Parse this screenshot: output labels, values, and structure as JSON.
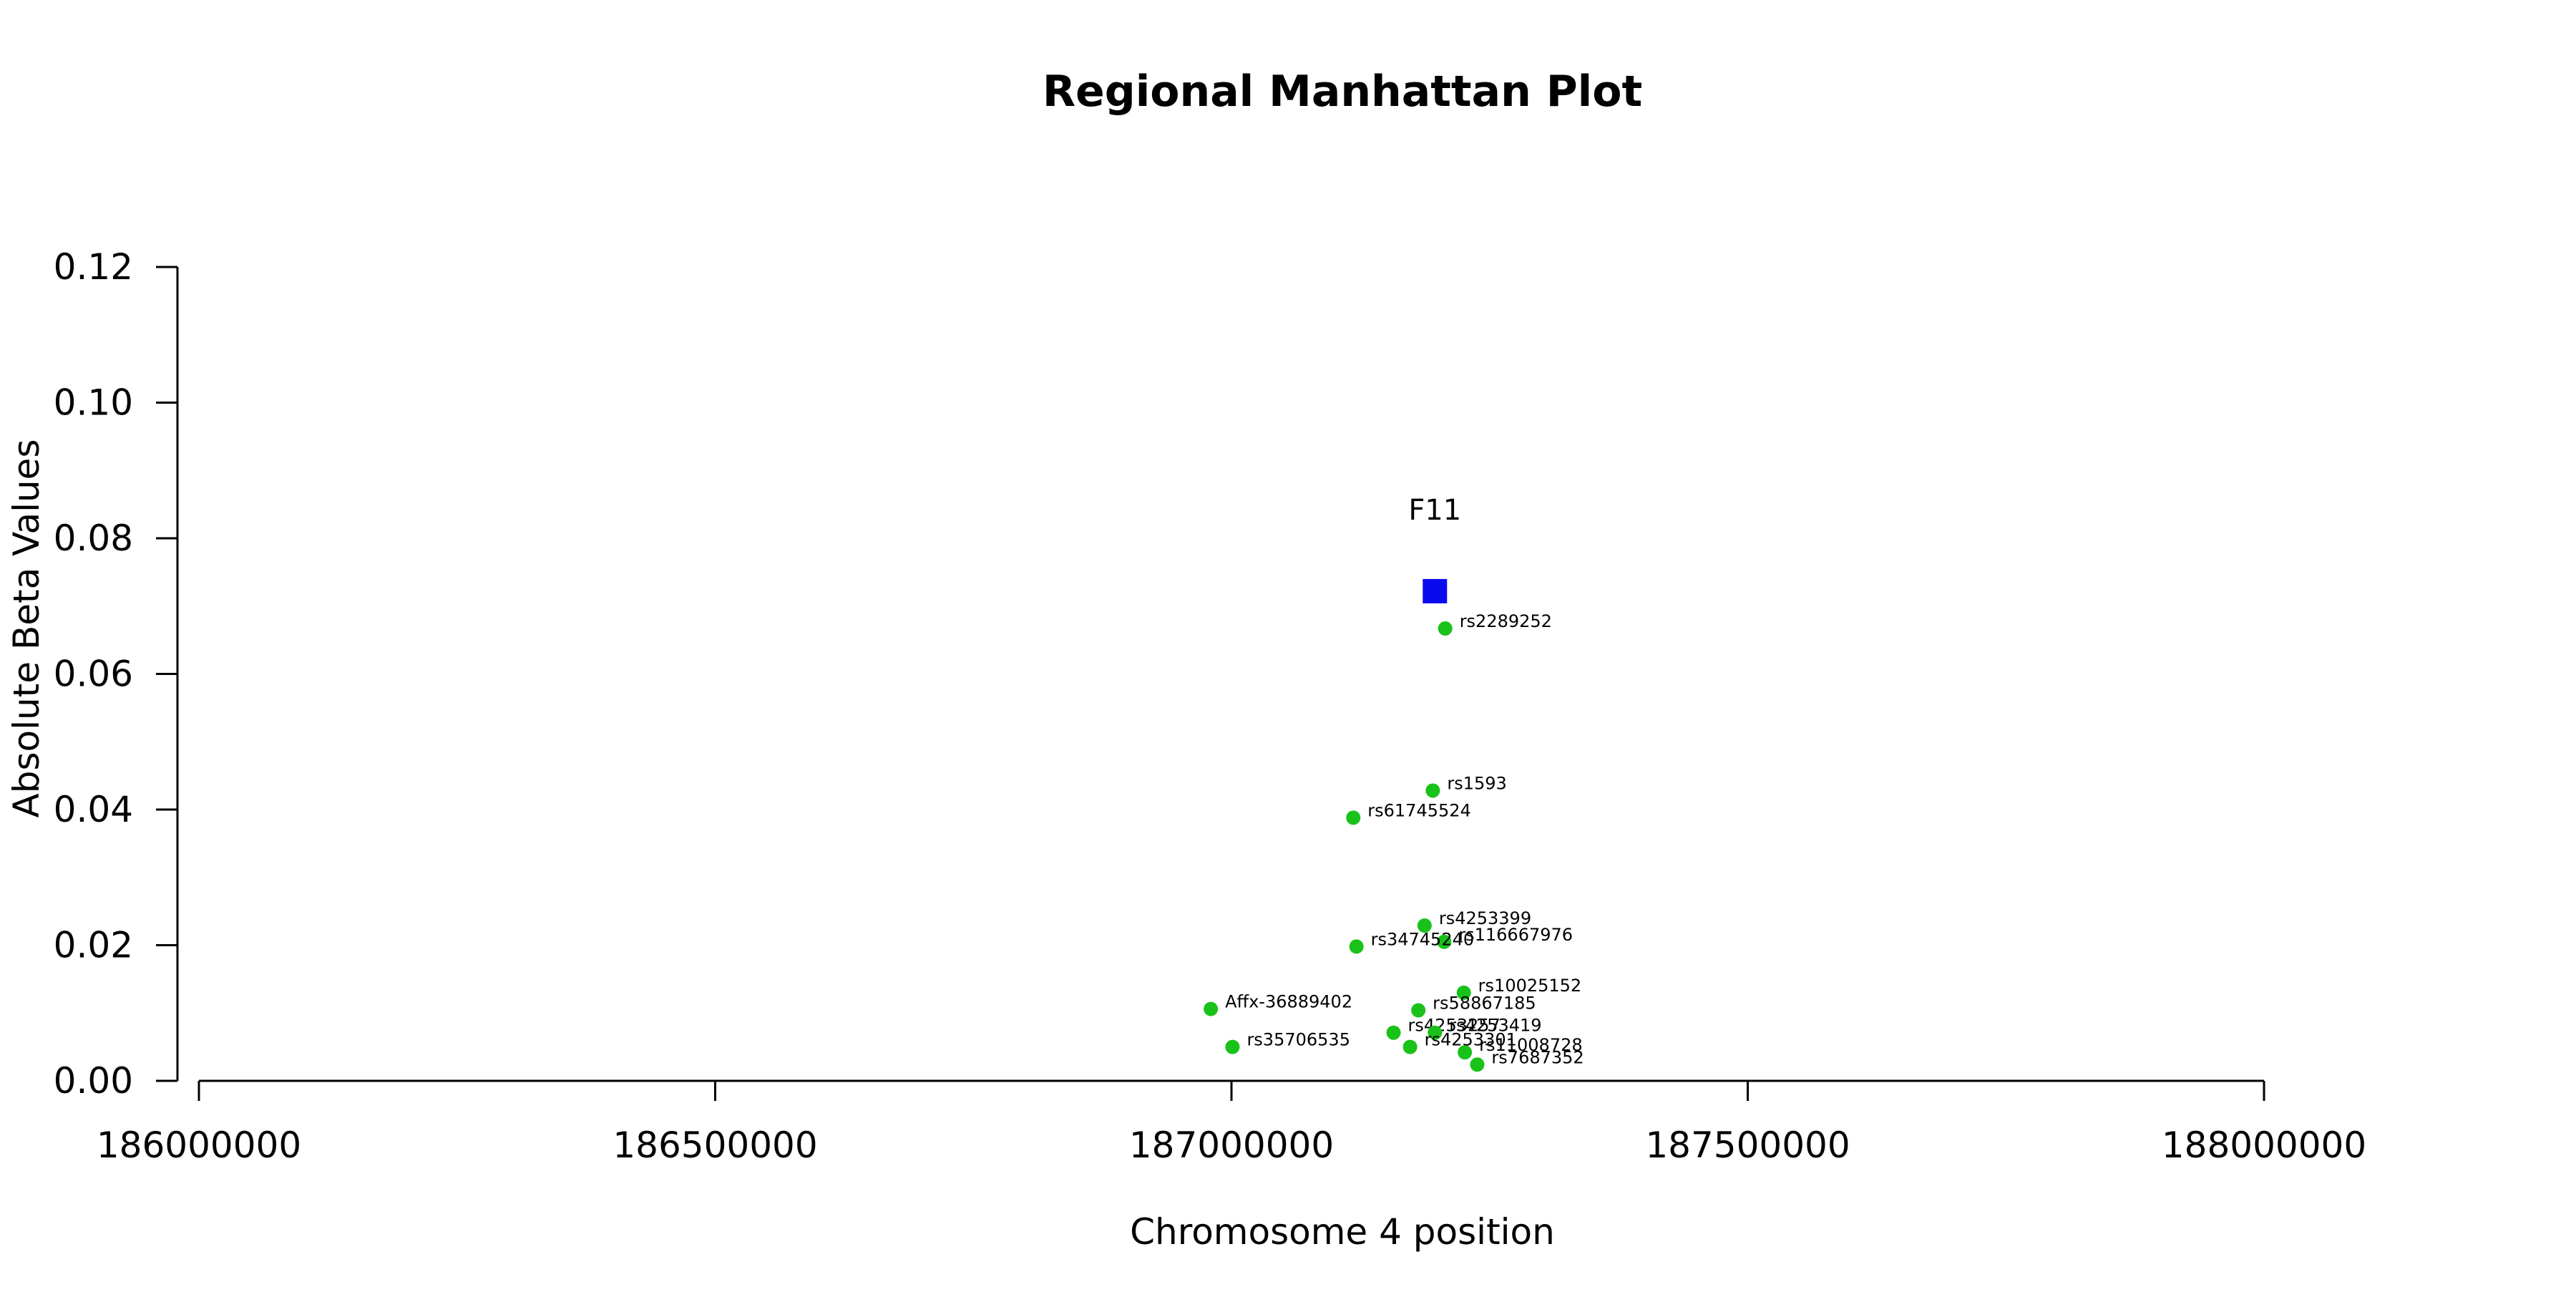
{
  "chart_data": {
    "type": "scatter",
    "title": "Regional Manhattan Plot",
    "xlabel": "Chromosome 4 position",
    "ylabel": "Absolute Beta Values",
    "xlim": [
      186000000,
      188000000
    ],
    "ylim": [
      0,
      0.12
    ],
    "x_ticks": [
      "186000000",
      "186500000",
      "187000000",
      "187500000",
      "188000000"
    ],
    "y_ticks": [
      "0.00",
      "0.02",
      "0.04",
      "0.06",
      "0.08",
      "0.10",
      "0.12"
    ],
    "grid": false,
    "colors": {
      "snp": "#19c219",
      "gene": "#0a0af0"
    },
    "gene": {
      "name": "F11",
      "x": 187197000,
      "y": 0.0722
    },
    "points": [
      {
        "label": "rs2289252",
        "x": 187207000,
        "y": 0.0667
      },
      {
        "label": "rs1593",
        "x": 187195000,
        "y": 0.0428
      },
      {
        "label": "rs61745524",
        "x": 187118000,
        "y": 0.0388
      },
      {
        "label": "rs4253399",
        "x": 187187000,
        "y": 0.0229
      },
      {
        "label": "rs116667976",
        "x": 187206000,
        "y": 0.0205
      },
      {
        "label": "rs34745240",
        "x": 187121000,
        "y": 0.0198
      },
      {
        "label": "rs10025152",
        "x": 187225000,
        "y": 0.013
      },
      {
        "label": "Affx-36889402",
        "x": 186980000,
        "y": 0.0106
      },
      {
        "label": "rs58867185",
        "x": 187181000,
        "y": 0.0104
      },
      {
        "label": "rs4253257",
        "x": 187157000,
        "y": 0.0071
      },
      {
        "label": "rs4253419",
        "x": 187197000,
        "y": 0.0071
      },
      {
        "label": "rs35706535",
        "x": 187001000,
        "y": 0.005
      },
      {
        "label": "rs4253301",
        "x": 187173000,
        "y": 0.005
      },
      {
        "label": "rs11008728",
        "x": 187226000,
        "y": 0.0042
      },
      {
        "label": "rs7687352",
        "x": 187238000,
        "y": 0.0024
      }
    ]
  }
}
